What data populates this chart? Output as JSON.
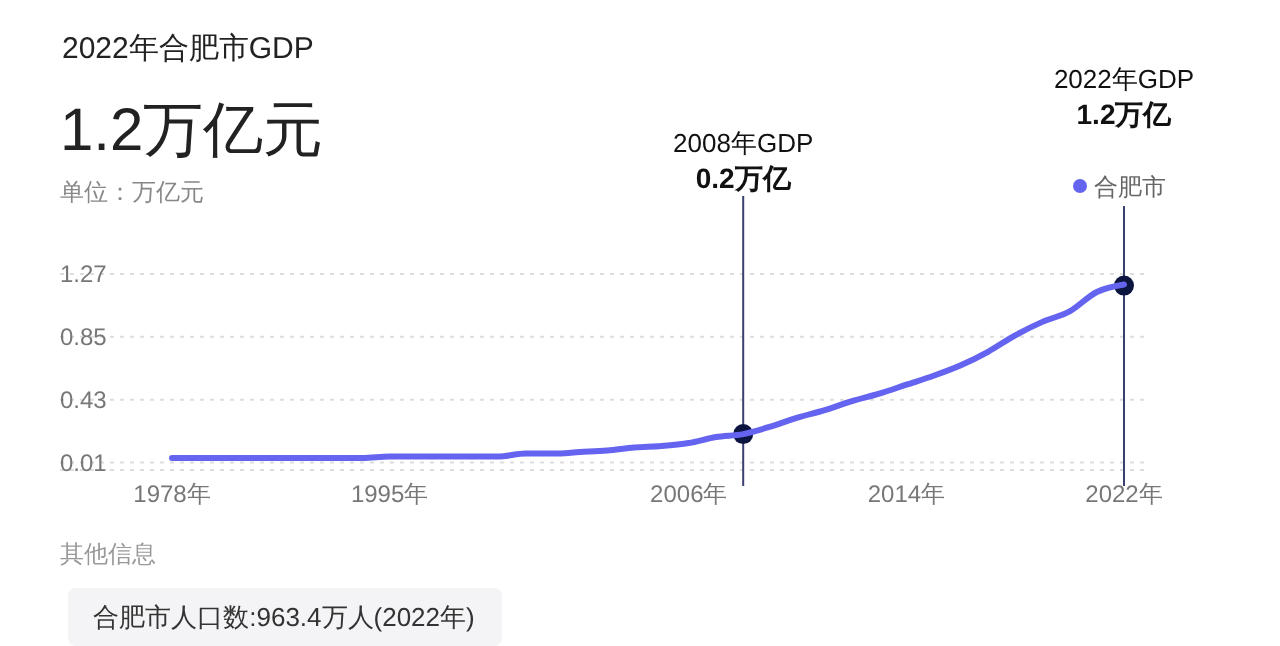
{
  "chart_data": {
    "type": "line",
    "title": "2022年合肥市GDP",
    "subtitle": "1.2万亿元",
    "ylabel": "单位：万亿元",
    "categories": [
      "1978年",
      null,
      null,
      null,
      null,
      null,
      null,
      null,
      "1995年",
      null,
      null,
      null,
      null,
      null,
      null,
      null,
      null,
      null,
      null,
      "2006年",
      null,
      null,
      null,
      null,
      null,
      null,
      null,
      "2014年",
      null,
      null,
      null,
      null,
      null,
      null,
      null,
      "2022年"
    ],
    "series": [
      {
        "name": "合肥市",
        "color": "#6464f0",
        "values": [
          0.04,
          0.04,
          0.04,
          0.04,
          0.04,
          0.04,
          0.04,
          0.04,
          0.05,
          0.05,
          0.05,
          0.05,
          0.05,
          0.07,
          0.07,
          0.08,
          0.09,
          0.11,
          0.12,
          0.14,
          0.18,
          0.2,
          0.25,
          0.31,
          0.36,
          0.42,
          0.47,
          0.53,
          0.59,
          0.66,
          0.75,
          0.86,
          0.95,
          1.02,
          1.15,
          1.2
        ]
      }
    ],
    "ylim": [
      -0.04,
      1.27
    ],
    "yticks": [
      0.01,
      0.43,
      0.85,
      1.27
    ],
    "grid": "y",
    "legend": "top right",
    "marker": "none",
    "annotations": [
      "2008年GDP\n0.2万亿",
      "2022年GDP\n1.2万亿",
      "其他信息",
      "合肥市人口数:963.4万人(2022年)"
    ]
  }
}
